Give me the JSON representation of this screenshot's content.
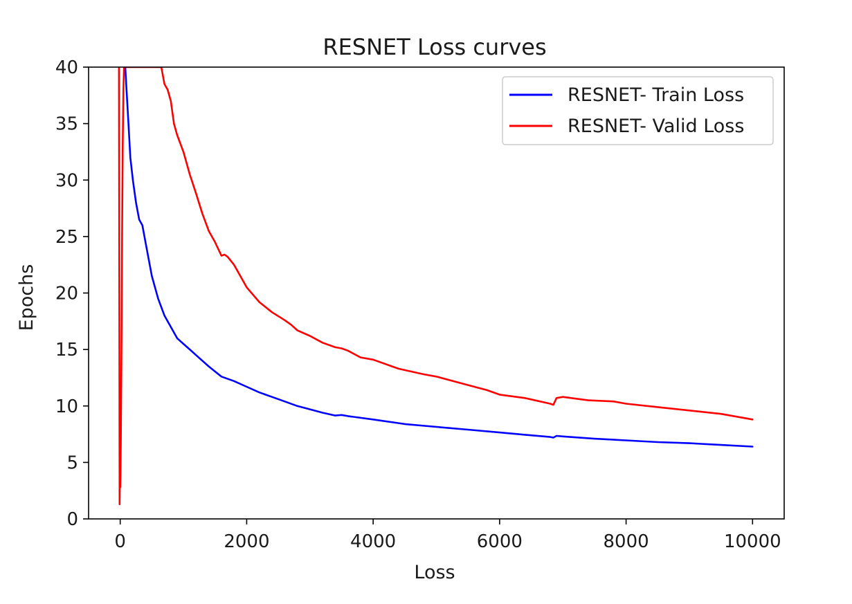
{
  "chart_data": {
    "type": "line",
    "title": "RESNET Loss curves",
    "xlabel": "Loss",
    "ylabel": "Epochs",
    "xlim": [
      -500,
      10500
    ],
    "ylim": [
      0,
      40
    ],
    "xticks": [
      0,
      2000,
      4000,
      6000,
      8000,
      10000
    ],
    "yticks": [
      0,
      5,
      10,
      15,
      20,
      25,
      30,
      35,
      40
    ],
    "grid": false,
    "legend_position": "top-right",
    "series": [
      {
        "name": "RESNET- Train Loss",
        "color": "#0000ff",
        "x": [
          60,
          80,
          100,
          130,
          160,
          200,
          250,
          300,
          350,
          400,
          450,
          500,
          600,
          700,
          800,
          900,
          1000,
          1100,
          1200,
          1400,
          1600,
          1800,
          2000,
          2200,
          2400,
          2600,
          2800,
          3000,
          3200,
          3400,
          3500,
          3600,
          4000,
          4500,
          5000,
          5500,
          6000,
          6500,
          6800,
          6850,
          6900,
          7000,
          7500,
          8000,
          8500,
          9000,
          9500,
          10000
        ],
        "y": [
          40,
          40,
          38,
          35,
          32,
          30,
          28,
          26.5,
          26,
          24.5,
          23,
          21.5,
          19.5,
          18,
          17,
          16,
          15.5,
          15,
          14.5,
          13.5,
          12.6,
          12.2,
          11.7,
          11.2,
          10.8,
          10.4,
          10.0,
          9.7,
          9.4,
          9.15,
          9.2,
          9.1,
          8.8,
          8.4,
          8.15,
          7.9,
          7.65,
          7.4,
          7.25,
          7.2,
          7.35,
          7.3,
          7.1,
          6.95,
          6.8,
          6.7,
          6.55,
          6.4
        ]
      },
      {
        "name": "RESNET- Valid Loss",
        "color": "#ff0000",
        "x": [
          -20,
          -10,
          -5,
          0,
          5,
          10,
          20,
          30,
          40,
          50,
          60,
          650,
          700,
          750,
          800,
          850,
          900,
          1000,
          1100,
          1200,
          1300,
          1400,
          1500,
          1600,
          1650,
          1700,
          1800,
          1900,
          2000,
          2200,
          2400,
          2600,
          2700,
          2800,
          3000,
          3200,
          3400,
          3500,
          3600,
          3800,
          4000,
          4400,
          4800,
          5000,
          5400,
          5800,
          6000,
          6400,
          6800,
          6850,
          6900,
          7000,
          7400,
          7800,
          8000,
          8500,
          9000,
          9500,
          10000
        ],
        "y": [
          40,
          1.3,
          3.5,
          2.8,
          4,
          7,
          15,
          25,
          33,
          38,
          40,
          40,
          38.5,
          38,
          37,
          35,
          34,
          32.5,
          30.5,
          28.8,
          27,
          25.5,
          24.5,
          23.3,
          23.4,
          23.2,
          22.5,
          21.5,
          20.5,
          19.2,
          18.3,
          17.6,
          17.2,
          16.7,
          16.2,
          15.6,
          15.2,
          15.1,
          14.9,
          14.3,
          14.1,
          13.3,
          12.8,
          12.6,
          12.0,
          11.4,
          11.0,
          10.7,
          10.2,
          10.1,
          10.7,
          10.8,
          10.5,
          10.4,
          10.2,
          9.9,
          9.6,
          9.3,
          8.8
        ]
      }
    ]
  }
}
